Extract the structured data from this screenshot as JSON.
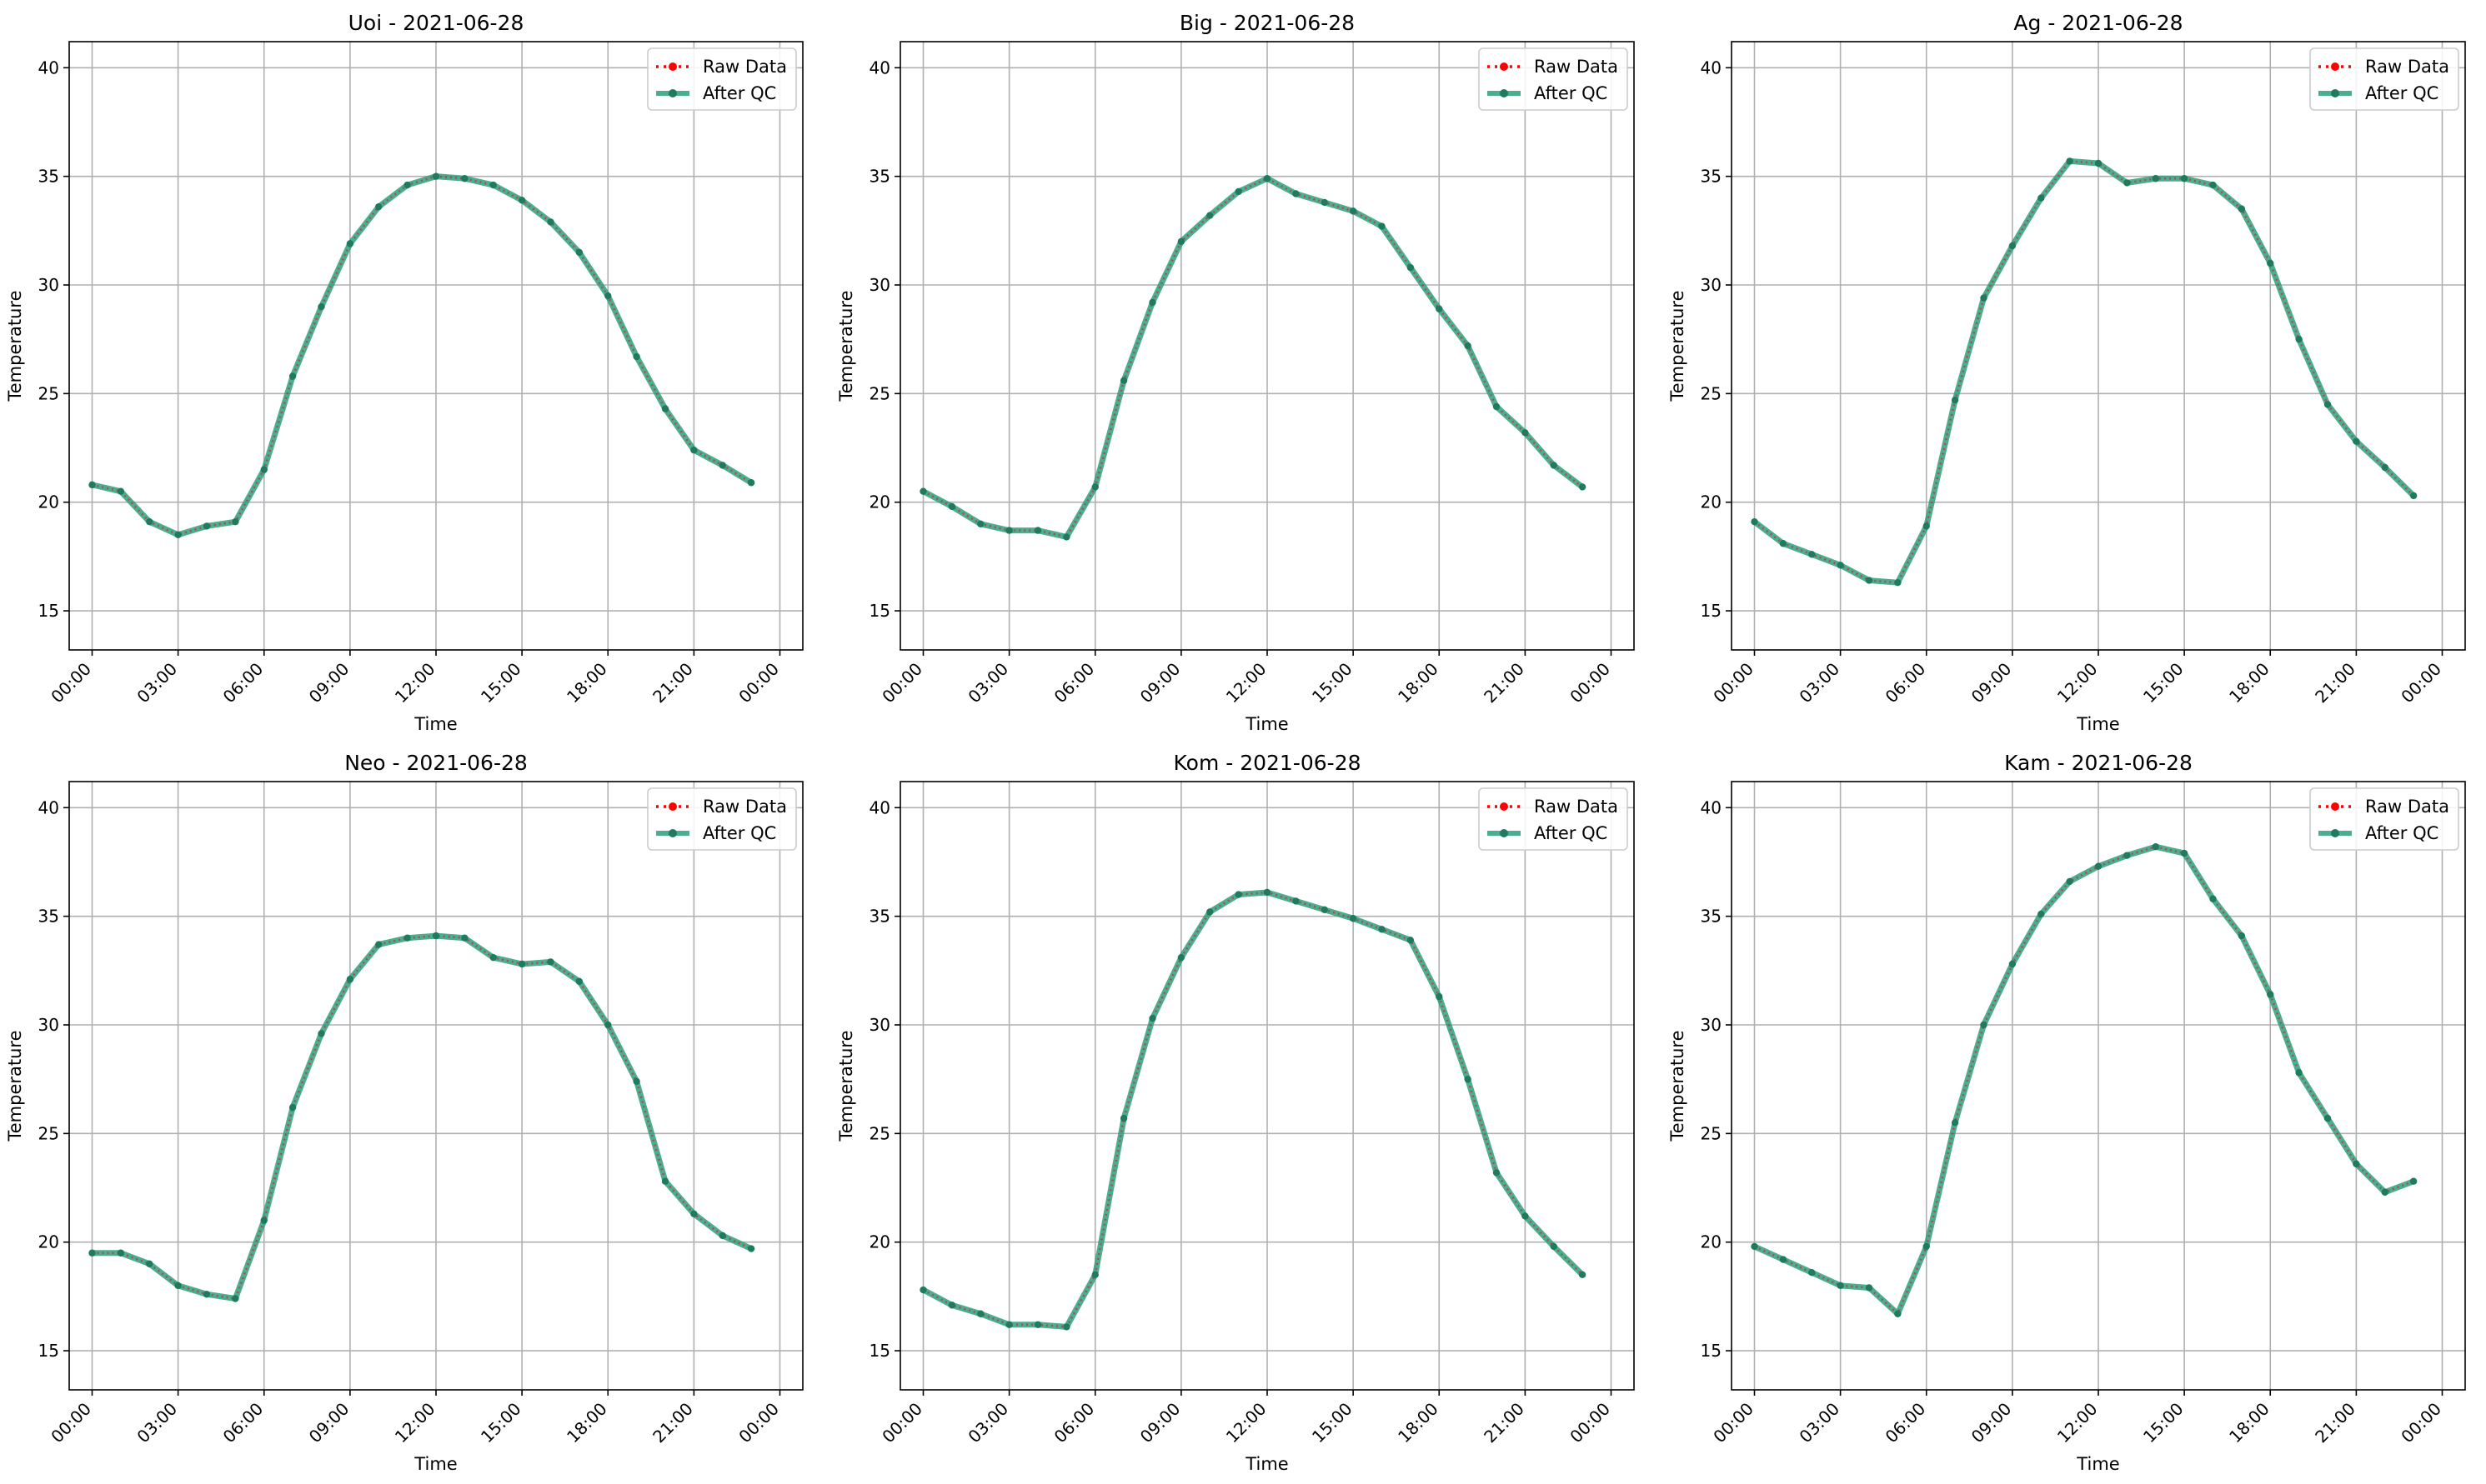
{
  "figure": {
    "colors": {
      "raw": "#ff0000",
      "qc": "#2ca07d",
      "qc_marker": "#1f7a5e",
      "grid": "#b0b0b0",
      "axes": "#000000",
      "legend_border": "#cccccc"
    }
  },
  "chart_data": [
    {
      "type": "line",
      "title": "Uoi - 2021-06-28",
      "xlabel": "Time",
      "ylabel": "Temperature",
      "xlim": [
        -0.8,
        24.8
      ],
      "ylim": [
        13.2,
        41.2
      ],
      "grid": true,
      "legend_position": "top-right",
      "x_ticks": [
        "00:00",
        "03:00",
        "06:00",
        "09:00",
        "12:00",
        "15:00",
        "18:00",
        "21:00",
        "00:00"
      ],
      "y_ticks": [
        "15",
        "20",
        "25",
        "30",
        "35",
        "40"
      ],
      "x": [
        0,
        1,
        2,
        3,
        4,
        5,
        6,
        7,
        8,
        9,
        10,
        11,
        12,
        13,
        14,
        15,
        16,
        17,
        18,
        19,
        20,
        21,
        22,
        23
      ],
      "series": [
        {
          "name": "Raw Data",
          "style": "dotted",
          "values": [
            20.8,
            20.5,
            19.1,
            18.5,
            18.9,
            19.1,
            21.5,
            25.8,
            29.0,
            31.9,
            33.6,
            34.6,
            35.0,
            34.9,
            34.6,
            33.9,
            32.9,
            31.5,
            29.5,
            26.7,
            24.3,
            22.4,
            21.7,
            20.9
          ]
        },
        {
          "name": "After QC",
          "style": "solid",
          "values": [
            20.8,
            20.5,
            19.1,
            18.5,
            18.9,
            19.1,
            21.5,
            25.8,
            29.0,
            31.9,
            33.6,
            34.6,
            35.0,
            34.9,
            34.6,
            33.9,
            32.9,
            31.5,
            29.5,
            26.7,
            24.3,
            22.4,
            21.7,
            20.9
          ]
        }
      ]
    },
    {
      "type": "line",
      "title": "Big - 2021-06-28",
      "xlabel": "Time",
      "ylabel": "Temperature",
      "xlim": [
        -0.8,
        24.8
      ],
      "ylim": [
        13.2,
        41.2
      ],
      "grid": true,
      "legend_position": "top-right",
      "x_ticks": [
        "00:00",
        "03:00",
        "06:00",
        "09:00",
        "12:00",
        "15:00",
        "18:00",
        "21:00",
        "00:00"
      ],
      "y_ticks": [
        "15",
        "20",
        "25",
        "30",
        "35",
        "40"
      ],
      "x": [
        0,
        1,
        2,
        3,
        4,
        5,
        6,
        7,
        8,
        9,
        10,
        11,
        12,
        13,
        14,
        15,
        16,
        17,
        18,
        19,
        20,
        21,
        22,
        23
      ],
      "series": [
        {
          "name": "Raw Data",
          "style": "dotted",
          "values": [
            20.5,
            19.8,
            19.0,
            18.7,
            18.7,
            18.4,
            20.7,
            25.6,
            29.2,
            32.0,
            33.2,
            34.3,
            34.9,
            34.2,
            33.8,
            33.4,
            32.7,
            30.8,
            28.9,
            27.2,
            24.4,
            23.2,
            21.7,
            20.7
          ]
        },
        {
          "name": "After QC",
          "style": "solid",
          "values": [
            20.5,
            19.8,
            19.0,
            18.7,
            18.7,
            18.4,
            20.7,
            25.6,
            29.2,
            32.0,
            33.2,
            34.3,
            34.9,
            34.2,
            33.8,
            33.4,
            32.7,
            30.8,
            28.9,
            27.2,
            24.4,
            23.2,
            21.7,
            20.7
          ]
        }
      ]
    },
    {
      "type": "line",
      "title": "Ag - 2021-06-28",
      "xlabel": "Time",
      "ylabel": "Temperature",
      "xlim": [
        -0.8,
        24.8
      ],
      "ylim": [
        13.2,
        41.2
      ],
      "grid": true,
      "legend_position": "top-right",
      "x_ticks": [
        "00:00",
        "03:00",
        "06:00",
        "09:00",
        "12:00",
        "15:00",
        "18:00",
        "21:00",
        "00:00"
      ],
      "y_ticks": [
        "15",
        "20",
        "25",
        "30",
        "35",
        "40"
      ],
      "x": [
        0,
        1,
        2,
        3,
        4,
        5,
        6,
        7,
        8,
        9,
        10,
        11,
        12,
        13,
        14,
        15,
        16,
        17,
        18,
        19,
        20,
        21,
        22,
        23
      ],
      "series": [
        {
          "name": "Raw Data",
          "style": "dotted",
          "values": [
            19.1,
            18.1,
            17.6,
            17.1,
            16.4,
            16.3,
            18.9,
            24.7,
            29.4,
            31.8,
            34.0,
            35.7,
            35.6,
            34.7,
            34.9,
            34.9,
            34.6,
            33.5,
            31.0,
            27.5,
            24.5,
            22.8,
            21.6,
            20.3
          ]
        },
        {
          "name": "After QC",
          "style": "solid",
          "values": [
            19.1,
            18.1,
            17.6,
            17.1,
            16.4,
            16.3,
            18.9,
            24.7,
            29.4,
            31.8,
            34.0,
            35.7,
            35.6,
            34.7,
            34.9,
            34.9,
            34.6,
            33.5,
            31.0,
            27.5,
            24.5,
            22.8,
            21.6,
            20.3
          ]
        }
      ]
    },
    {
      "type": "line",
      "title": "Neo - 2021-06-28",
      "xlabel": "Time",
      "ylabel": "Temperature",
      "xlim": [
        -0.8,
        24.8
      ],
      "ylim": [
        13.2,
        41.2
      ],
      "grid": true,
      "legend_position": "top-right",
      "x_ticks": [
        "00:00",
        "03:00",
        "06:00",
        "09:00",
        "12:00",
        "15:00",
        "18:00",
        "21:00",
        "00:00"
      ],
      "y_ticks": [
        "15",
        "20",
        "25",
        "30",
        "35",
        "40"
      ],
      "x": [
        0,
        1,
        2,
        3,
        4,
        5,
        6,
        7,
        8,
        9,
        10,
        11,
        12,
        13,
        14,
        15,
        16,
        17,
        18,
        19,
        20,
        21,
        22,
        23
      ],
      "series": [
        {
          "name": "Raw Data",
          "style": "dotted",
          "values": [
            19.5,
            19.5,
            19.0,
            18.0,
            17.6,
            17.4,
            21.0,
            26.2,
            29.6,
            32.1,
            33.7,
            34.0,
            34.1,
            34.0,
            33.1,
            32.8,
            32.9,
            32.0,
            30.0,
            27.4,
            22.8,
            21.3,
            20.3,
            19.7
          ]
        },
        {
          "name": "After QC",
          "style": "solid",
          "values": [
            19.5,
            19.5,
            19.0,
            18.0,
            17.6,
            17.4,
            21.0,
            26.2,
            29.6,
            32.1,
            33.7,
            34.0,
            34.1,
            34.0,
            33.1,
            32.8,
            32.9,
            32.0,
            30.0,
            27.4,
            22.8,
            21.3,
            20.3,
            19.7
          ]
        }
      ]
    },
    {
      "type": "line",
      "title": "Kom - 2021-06-28",
      "xlabel": "Time",
      "ylabel": "Temperature",
      "xlim": [
        -0.8,
        24.8
      ],
      "ylim": [
        13.2,
        41.2
      ],
      "grid": true,
      "legend_position": "top-right",
      "x_ticks": [
        "00:00",
        "03:00",
        "06:00",
        "09:00",
        "12:00",
        "15:00",
        "18:00",
        "21:00",
        "00:00"
      ],
      "y_ticks": [
        "15",
        "20",
        "25",
        "30",
        "35",
        "40"
      ],
      "x": [
        0,
        1,
        2,
        3,
        4,
        5,
        6,
        7,
        8,
        9,
        10,
        11,
        12,
        13,
        14,
        15,
        16,
        17,
        18,
        19,
        20,
        21,
        22,
        23
      ],
      "series": [
        {
          "name": "Raw Data",
          "style": "dotted",
          "values": [
            17.8,
            17.1,
            16.7,
            16.2,
            16.2,
            16.1,
            18.5,
            25.7,
            30.3,
            33.1,
            35.2,
            36.0,
            36.1,
            35.7,
            35.3,
            34.9,
            34.4,
            33.9,
            31.3,
            27.5,
            23.2,
            21.2,
            19.8,
            18.5
          ]
        },
        {
          "name": "After QC",
          "style": "solid",
          "values": [
            17.8,
            17.1,
            16.7,
            16.2,
            16.2,
            16.1,
            18.5,
            25.7,
            30.3,
            33.1,
            35.2,
            36.0,
            36.1,
            35.7,
            35.3,
            34.9,
            34.4,
            33.9,
            31.3,
            27.5,
            23.2,
            21.2,
            19.8,
            18.5
          ]
        }
      ]
    },
    {
      "type": "line",
      "title": "Kam - 2021-06-28",
      "xlabel": "Time",
      "ylabel": "Temperature",
      "xlim": [
        -0.8,
        24.8
      ],
      "ylim": [
        13.2,
        41.2
      ],
      "grid": true,
      "legend_position": "top-right",
      "x_ticks": [
        "00:00",
        "03:00",
        "06:00",
        "09:00",
        "12:00",
        "15:00",
        "18:00",
        "21:00",
        "00:00"
      ],
      "y_ticks": [
        "15",
        "20",
        "25",
        "30",
        "35",
        "40"
      ],
      "x": [
        0,
        1,
        2,
        3,
        4,
        5,
        6,
        7,
        8,
        9,
        10,
        11,
        12,
        13,
        14,
        15,
        16,
        17,
        18,
        19,
        20,
        21,
        22,
        23
      ],
      "series": [
        {
          "name": "Raw Data",
          "style": "dotted",
          "values": [
            19.8,
            19.2,
            18.6,
            18.0,
            17.9,
            16.7,
            19.8,
            25.5,
            30.0,
            32.8,
            35.1,
            36.6,
            37.3,
            37.8,
            38.2,
            37.9,
            35.8,
            34.1,
            31.4,
            27.8,
            25.7,
            23.6,
            22.3,
            22.8
          ]
        },
        {
          "name": "After QC",
          "style": "solid",
          "values": [
            19.8,
            19.2,
            18.6,
            18.0,
            17.9,
            16.7,
            19.8,
            25.5,
            30.0,
            32.8,
            35.1,
            36.6,
            37.3,
            37.8,
            38.2,
            37.9,
            35.8,
            34.1,
            31.4,
            27.8,
            25.7,
            23.6,
            22.3,
            22.8
          ]
        }
      ]
    }
  ]
}
